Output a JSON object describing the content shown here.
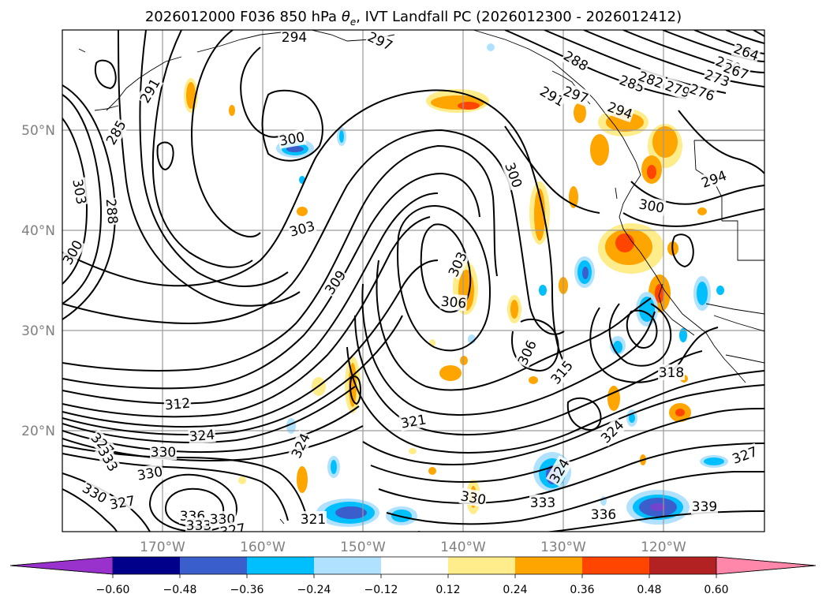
{
  "title": {
    "prefix": "2026012000 F036 850 hPa ",
    "theta": "θ",
    "theta_sub": "e",
    "suffix": ", IVT Landfall PC (2026012300 - 2026012412)"
  },
  "map": {
    "lat_labels": [
      "50°N",
      "40°N",
      "30°N",
      "20°N"
    ],
    "lon_labels": [
      "170°W",
      "160°W",
      "150°W",
      "140°W",
      "130°W",
      "120°W"
    ]
  },
  "colorbar": {
    "colors": [
      "#9932cc",
      "#00008b",
      "#3a5fcd",
      "#00bfff",
      "#b0e2ff",
      "#ffffff",
      "#ffec8b",
      "#ffa500",
      "#ff4500",
      "#b22222",
      "#ff88aa"
    ],
    "tick_labels": [
      "−0.60",
      "−0.48",
      "−0.36",
      "−0.24",
      "−0.12",
      "0.12",
      "0.24",
      "0.36",
      "0.48",
      "0.60"
    ]
  },
  "contour_labels": [
    "294",
    "297",
    "291",
    "285",
    "303",
    "288",
    "300",
    "300",
    "303",
    "300",
    "303",
    "309",
    "306",
    "306",
    "312",
    "315",
    "318",
    "321",
    "324",
    "324",
    "324",
    "327",
    "327",
    "330",
    "330",
    "330",
    "330",
    "333",
    "336",
    "333",
    "330",
    "327",
    "336",
    "339",
    "333",
    "327",
    "321",
    "291",
    "288",
    "285",
    "282",
    "279",
    "276",
    "273",
    "270",
    "267",
    "264",
    "294",
    "300",
    "297",
    "294",
    "324"
  ]
}
